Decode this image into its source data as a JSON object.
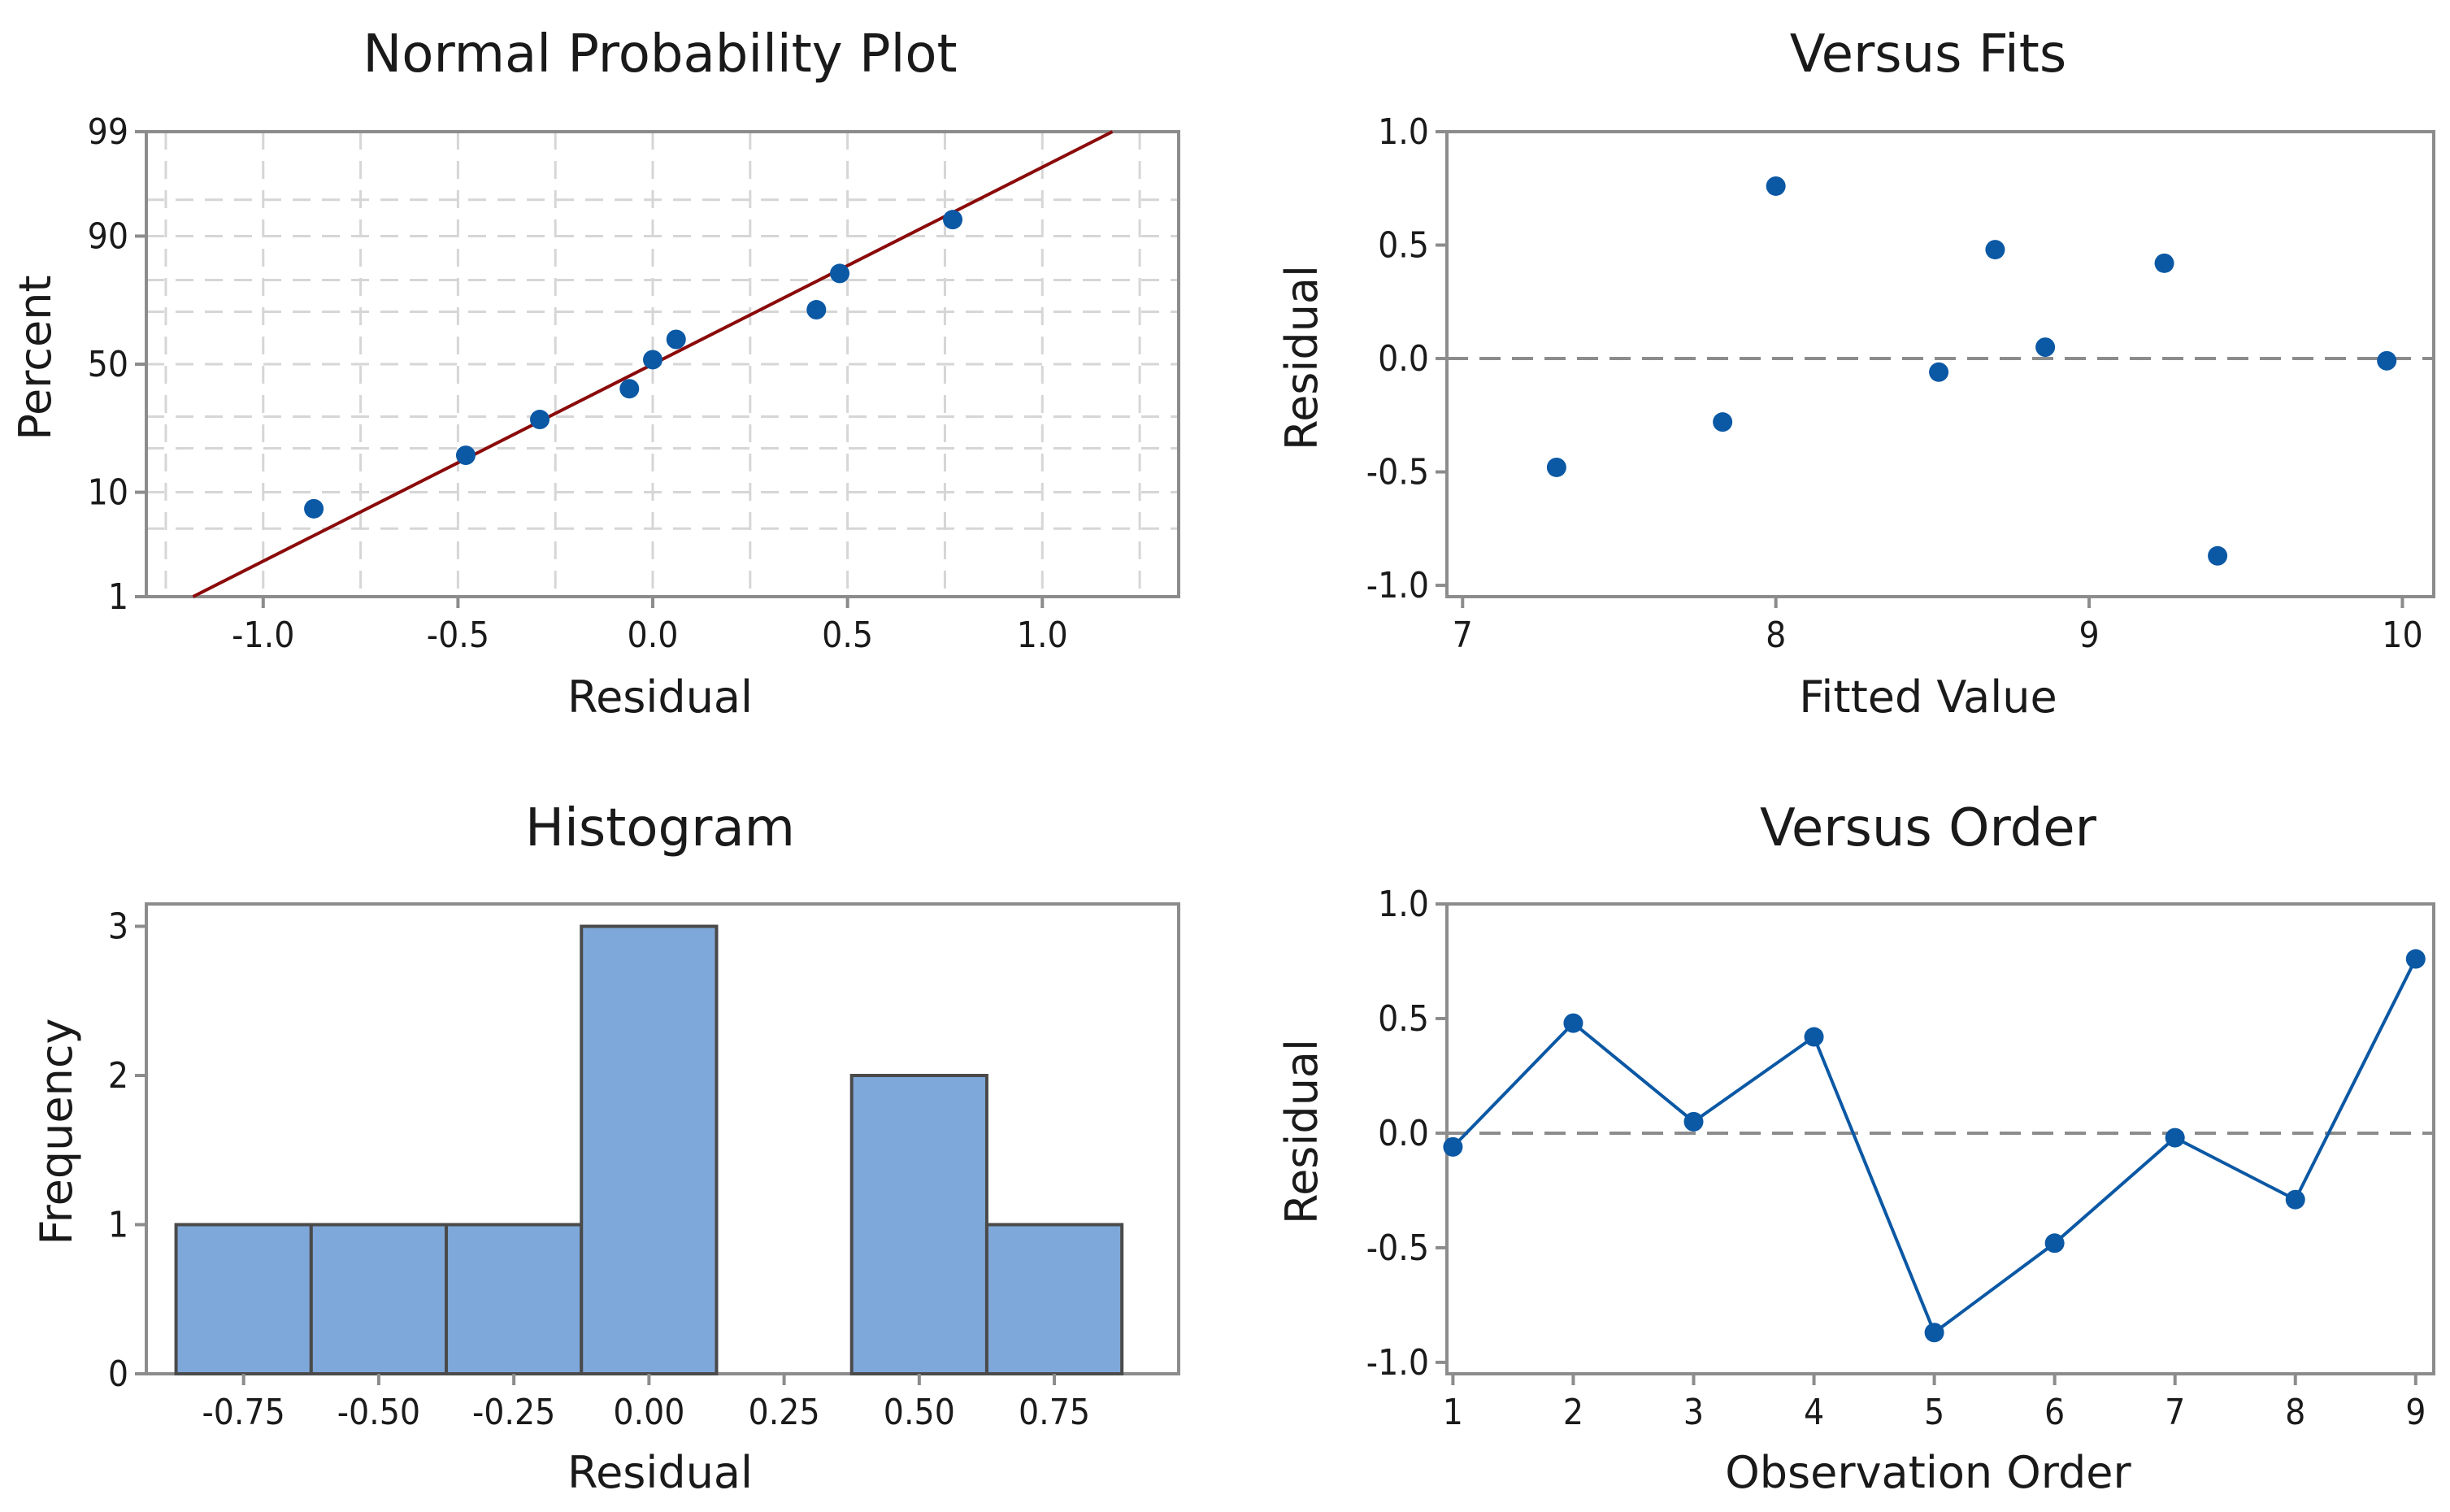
{
  "figure": {
    "colors": {
      "point": "#0B58A4",
      "fit_line": "#8B0A0A",
      "bar_fill": "#7FA8DA",
      "bar_stroke": "#4A4A4A",
      "order_line": "#0B58A4"
    }
  },
  "chart_data": [
    {
      "id": "normal-probability",
      "type": "scatter",
      "title": "Normal Probability Plot",
      "xlabel": "Residual",
      "ylabel": "Percent",
      "xlim": [
        -1.3,
        1.35
      ],
      "xticks": [
        -1.0,
        -0.5,
        0.0,
        0.5,
        1.0
      ],
      "xtick_labels": [
        "-1.0",
        "-0.5",
        "0.0",
        "0.5",
        "1.0"
      ],
      "y_scale": "normal-probability",
      "ylim": [
        1,
        99
      ],
      "yticks": [
        1,
        10,
        50,
        90,
        99
      ],
      "ytick_labels": [
        "1",
        "10",
        "50",
        "90",
        "99"
      ],
      "grid": true,
      "x_grid": [
        -1.25,
        -1.0,
        -0.75,
        -0.5,
        -0.25,
        0.0,
        0.25,
        0.5,
        0.75,
        1.0,
        1.25
      ],
      "y_grid": [
        5,
        10,
        20,
        30,
        50,
        70,
        80,
        90,
        95
      ],
      "points": [
        {
          "x": -0.87,
          "y": 7.4
        },
        {
          "x": -0.48,
          "y": 18.1
        },
        {
          "x": -0.29,
          "y": 29.0
        },
        {
          "x": -0.06,
          "y": 40.3
        },
        {
          "x": 0.0,
          "y": 51.8
        },
        {
          "x": 0.06,
          "y": 59.8
        },
        {
          "x": 0.42,
          "y": 70.7
        },
        {
          "x": 0.48,
          "y": 81.8
        },
        {
          "x": 0.77,
          "y": 92.6
        }
      ],
      "fit_line": [
        {
          "x": -1.18,
          "y": 1
        },
        {
          "x": 1.18,
          "y": 99
        }
      ]
    },
    {
      "id": "versus-fits",
      "type": "scatter",
      "title": "Versus Fits",
      "xlabel": "Fitted Value",
      "ylabel": "Residual",
      "xlim": [
        6.95,
        10.1
      ],
      "xticks": [
        7,
        8,
        9,
        10
      ],
      "xtick_labels": [
        "7",
        "8",
        "9",
        "10"
      ],
      "ylim": [
        -1.05,
        1.0
      ],
      "yticks": [
        -1.0,
        -0.5,
        0.0,
        0.5,
        1.0
      ],
      "ytick_labels": [
        "-1.0",
        "-0.5",
        "0.0",
        "0.5",
        "1.0"
      ],
      "reference_line": 0,
      "points": [
        {
          "x": 7.3,
          "y": -0.48
        },
        {
          "x": 7.83,
          "y": -0.28
        },
        {
          "x": 8.0,
          "y": 0.76
        },
        {
          "x": 8.52,
          "y": -0.06
        },
        {
          "x": 8.7,
          "y": 0.48
        },
        {
          "x": 8.86,
          "y": 0.05
        },
        {
          "x": 9.24,
          "y": 0.42
        },
        {
          "x": 9.41,
          "y": -0.87
        },
        {
          "x": 9.95,
          "y": -0.01
        }
      ]
    },
    {
      "id": "histogram",
      "type": "bar",
      "title": "Histogram",
      "xlabel": "Residual",
      "ylabel": "Frequency",
      "xlim": [
        -0.93,
        0.98
      ],
      "bin_width": 0.25,
      "categories": [
        "-0.75",
        "-0.50",
        "-0.25",
        "0.00",
        "0.25",
        "0.50",
        "0.75"
      ],
      "bin_centers": [
        -0.75,
        -0.5,
        -0.25,
        0.0,
        0.25,
        0.5,
        0.75
      ],
      "values": [
        1,
        1,
        1,
        3,
        0,
        2,
        1
      ],
      "ylim": [
        0,
        3.15
      ],
      "yticks": [
        0,
        1,
        2,
        3
      ],
      "ytick_labels": [
        "0",
        "1",
        "2",
        "3"
      ]
    },
    {
      "id": "versus-order",
      "type": "line",
      "title": "Versus Order",
      "xlabel": "Observation Order",
      "ylabel": "Residual",
      "xlim": [
        0.95,
        9.15
      ],
      "xticks": [
        1,
        2,
        3,
        4,
        5,
        6,
        7,
        8,
        9
      ],
      "xtick_labels": [
        "1",
        "2",
        "3",
        "4",
        "5",
        "6",
        "7",
        "8",
        "9"
      ],
      "ylim": [
        -1.05,
        1.0
      ],
      "yticks": [
        -1.0,
        -0.5,
        0.0,
        0.5,
        1.0
      ],
      "ytick_labels": [
        "-1.0",
        "-0.5",
        "0.0",
        "0.5",
        "1.0"
      ],
      "reference_line": 0,
      "x": [
        1,
        2,
        3,
        4,
        5,
        6,
        7,
        8,
        9
      ],
      "values": [
        -0.06,
        0.48,
        0.05,
        0.42,
        -0.87,
        -0.48,
        -0.02,
        -0.29,
        0.76
      ]
    }
  ]
}
